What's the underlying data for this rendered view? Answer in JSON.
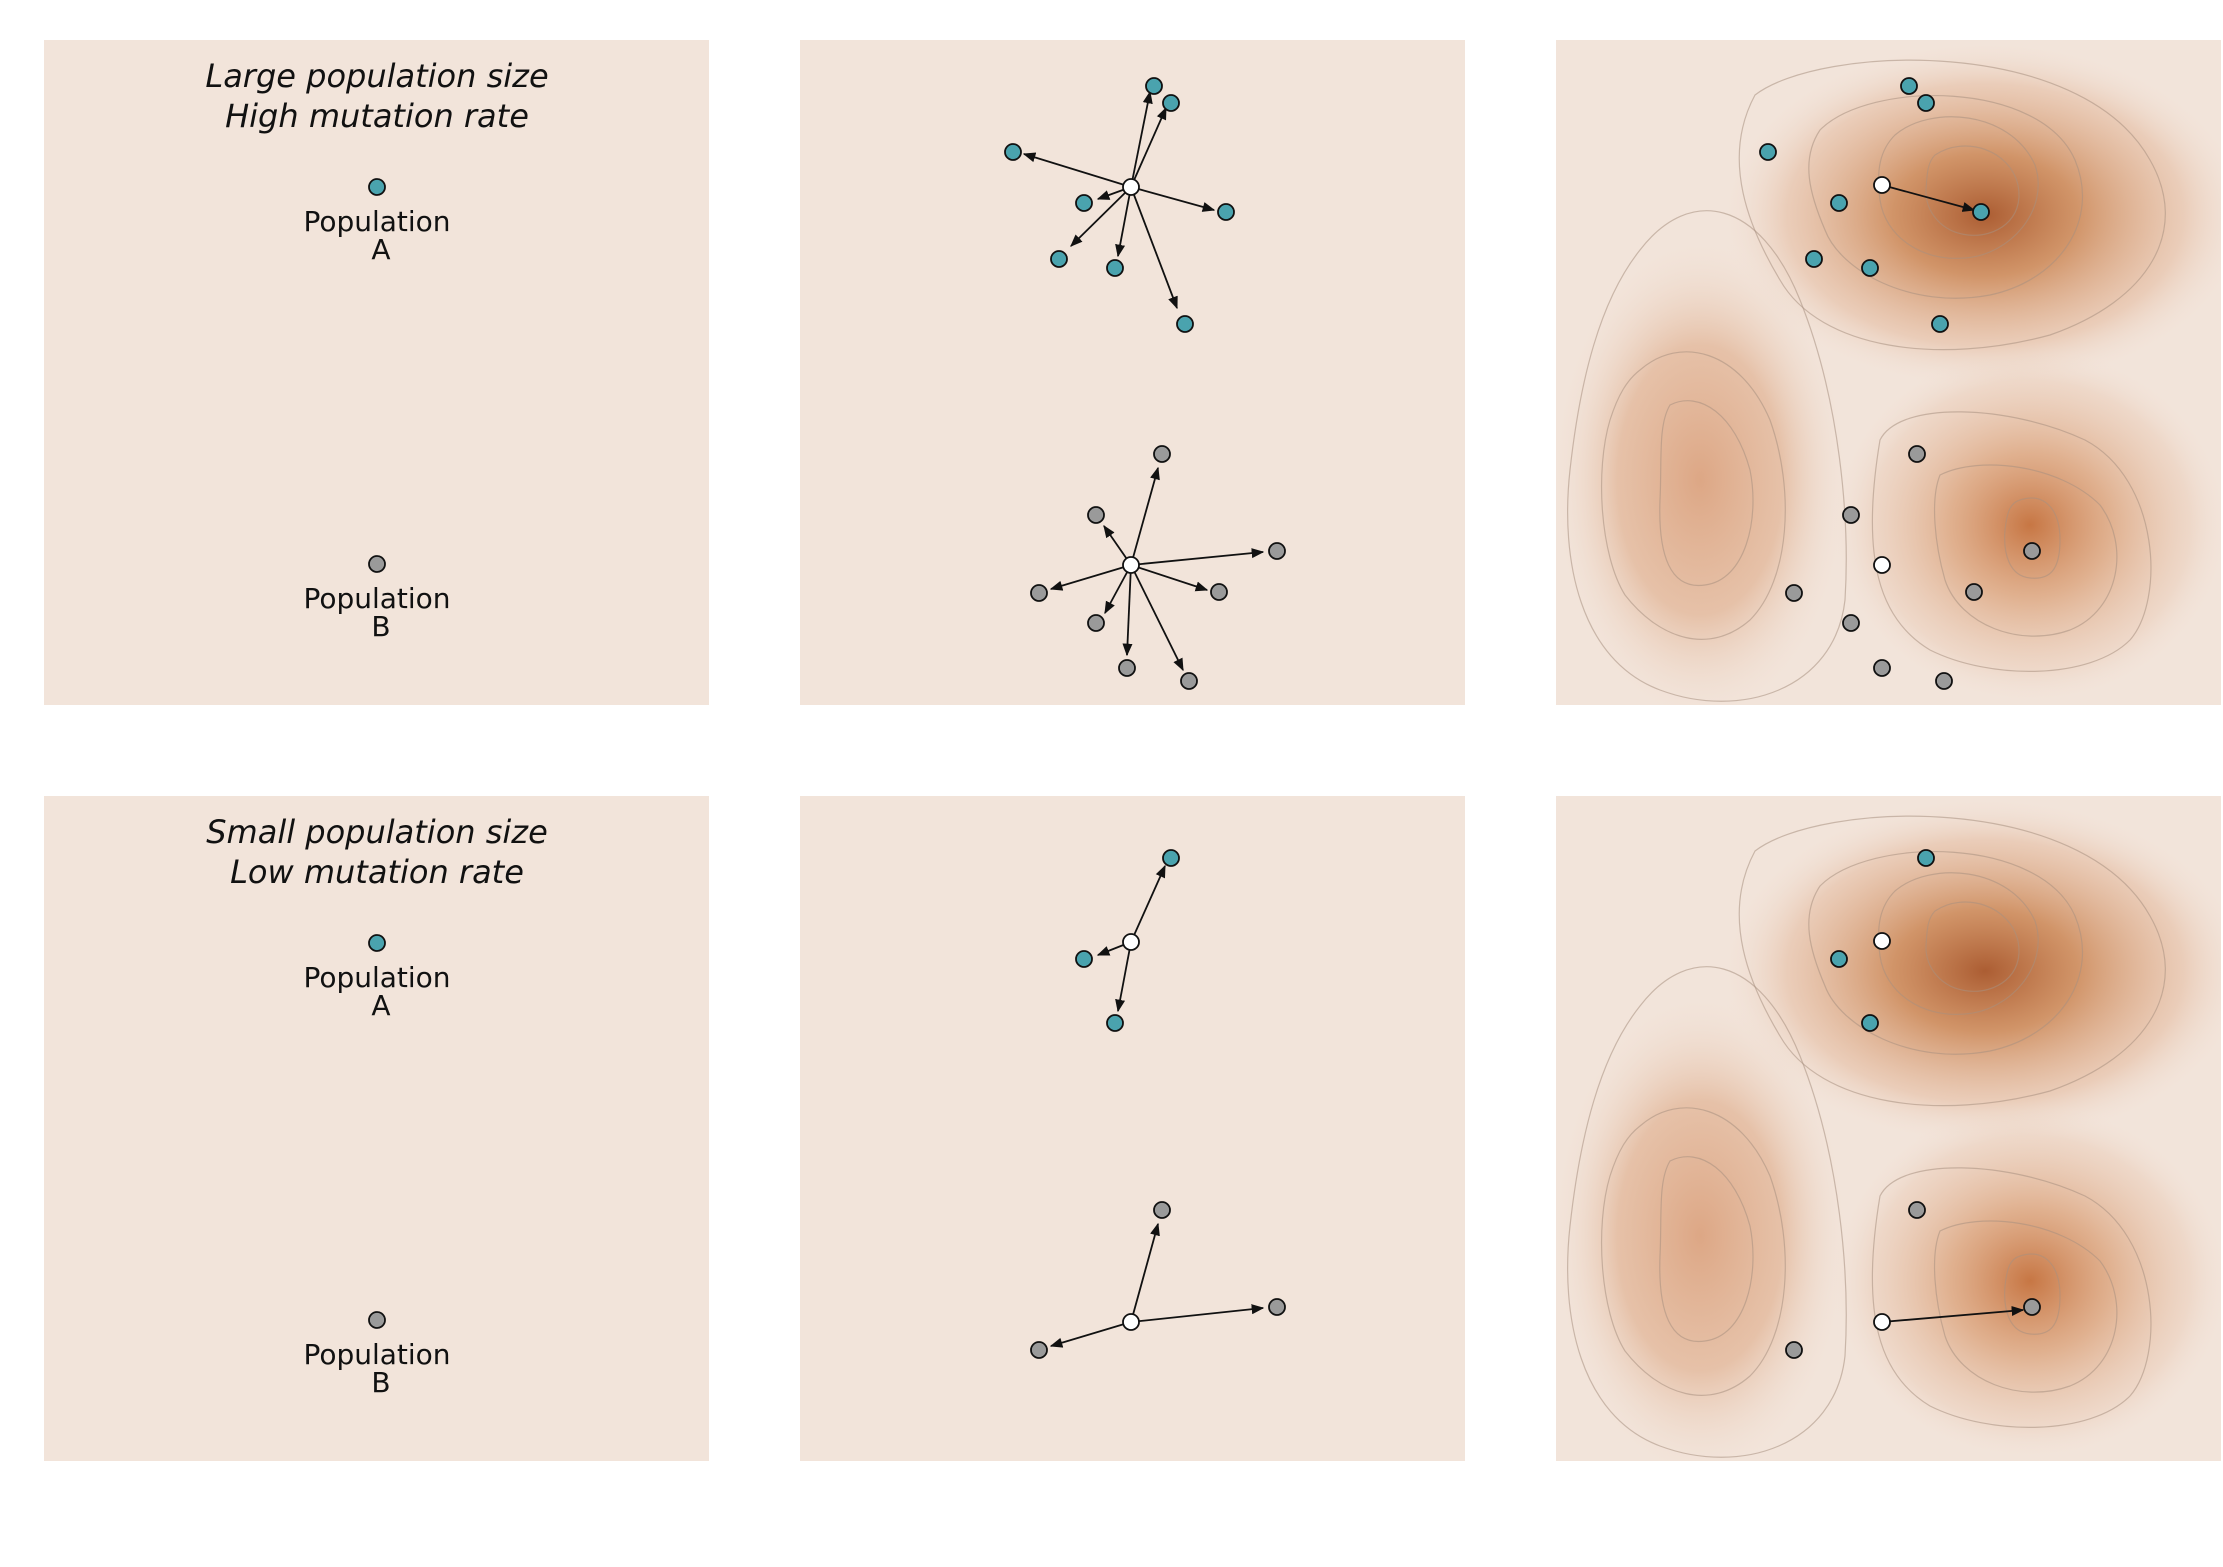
{
  "colors": {
    "panel_bg": "#f2e4da",
    "population_a": "#4aa3ae",
    "population_b": "#9a9a9a",
    "parent": "#ffffff",
    "peak": "#b8652d",
    "arrow": "#111111"
  },
  "rows": [
    {
      "title_line1": "Large population size",
      "title_line2": "High mutation rate",
      "population_a_label": {
        "line1": "Population",
        "line2": "A"
      },
      "population_b_label": {
        "line1": "Population",
        "line2": "B"
      }
    },
    {
      "title_line1": "Small population size",
      "title_line2": "Low mutation rate",
      "population_a_label": {
        "line1": "Population",
        "line2": "A"
      },
      "population_b_label": {
        "line1": "Population",
        "line2": "B"
      }
    }
  ]
}
